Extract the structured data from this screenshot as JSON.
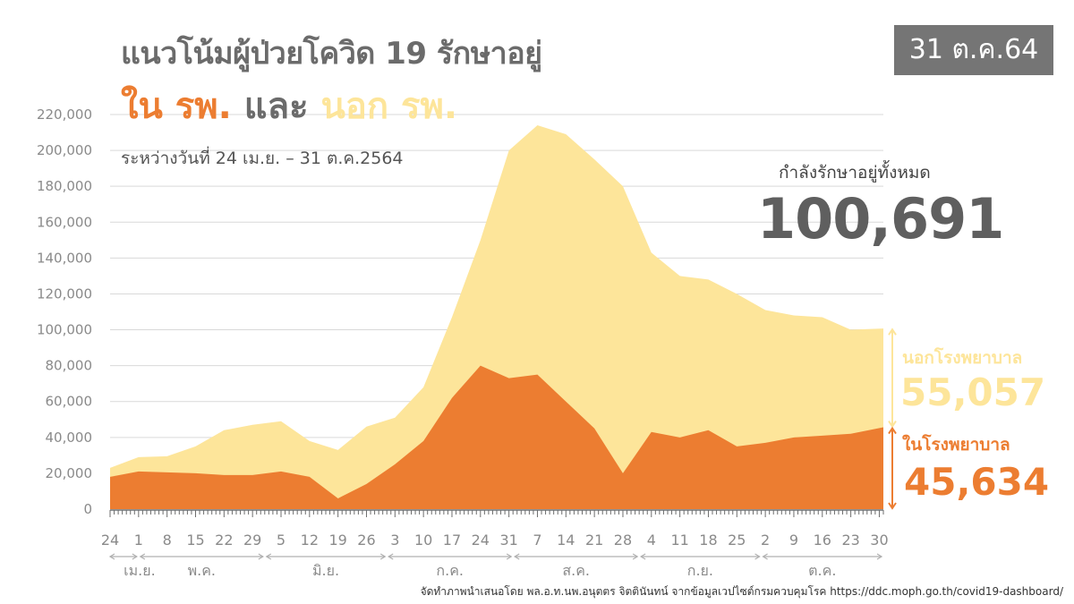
{
  "header": {
    "title": "แนวโน้มผู้ป่วยโควิด 19 รักษาอยู่",
    "subtitle_in": "ใน รพ.",
    "subtitle_and": "และ",
    "subtitle_out": "นอก รพ.",
    "date_range": "ระหว่างวันที่ 24 เม.ย. – 31 ต.ค.2564",
    "date_badge": "31 ต.ค.64"
  },
  "summary": {
    "total_label": "กำลังรักษาอยู่ทั้งหมด",
    "total_value": "100,691",
    "outside_label": "นอกโรงพยาบาล",
    "outside_value": "55,057",
    "inside_label": "ในโรงพยาบาล",
    "inside_value": "45,634"
  },
  "footer": {
    "credit": "จัดทำภาพนำเสนอโดย พล.อ.ท.นพ.อนุตตร จิตตินันทน์ จากข้อมูลเวปไซต์กรมควบคุมโรค https://ddc.moph.go.th/covid19-dashboard/"
  },
  "colors": {
    "inside": "#ec7d31",
    "outside": "#fde59a",
    "grid": "#d9d9d9",
    "axis_text": "#8a8a8a"
  },
  "chart_data": {
    "type": "area",
    "stacked": true,
    "x_start": "2021-04-24",
    "x_end": "2021-10-31",
    "x_tick_labels": [
      "24",
      "1",
      "8",
      "15",
      "22",
      "29",
      "5",
      "12",
      "19",
      "26",
      "3",
      "10",
      "17",
      "24",
      "31",
      "7",
      "14",
      "21",
      "28",
      "4",
      "11",
      "18",
      "25",
      "2",
      "9",
      "16",
      "23",
      "30"
    ],
    "months": [
      "เม.ย.",
      "พ.ค.",
      "มิ.ย.",
      "ก.ค.",
      "ส.ค.",
      "ก.ย.",
      "ต.ค."
    ],
    "y_ticks": [
      "0",
      "20,000",
      "40,000",
      "60,000",
      "80,000",
      "100,000",
      "120,000",
      "140,000",
      "160,000",
      "180,000",
      "200,000",
      "220,000"
    ],
    "ylim": [
      0,
      220000
    ],
    "grid": true,
    "series": [
      {
        "name": "ในโรงพยาบาล",
        "dates": [
          "2021-04-24",
          "2021-05-01",
          "2021-05-08",
          "2021-05-15",
          "2021-05-22",
          "2021-05-29",
          "2021-06-05",
          "2021-06-12",
          "2021-06-19",
          "2021-06-26",
          "2021-07-03",
          "2021-07-10",
          "2021-07-17",
          "2021-07-24",
          "2021-07-31",
          "2021-08-07",
          "2021-08-14",
          "2021-08-21",
          "2021-08-28",
          "2021-09-04",
          "2021-09-11",
          "2021-09-18",
          "2021-09-25",
          "2021-10-02",
          "2021-10-09",
          "2021-10-16",
          "2021-10-23",
          "2021-10-31"
        ],
        "values": [
          18000,
          21000,
          20500,
          20000,
          19000,
          19000,
          21000,
          18000,
          6000,
          14000,
          25000,
          38000,
          62000,
          80000,
          73000,
          75000,
          60000,
          45000,
          20000,
          43000,
          40000,
          44000,
          35000,
          37000,
          40000,
          41000,
          42000,
          45634
        ]
      },
      {
        "name": "นอกโรงพยาบาล",
        "dates": [
          "2021-04-24",
          "2021-05-01",
          "2021-05-08",
          "2021-05-15",
          "2021-05-22",
          "2021-05-29",
          "2021-06-05",
          "2021-06-12",
          "2021-06-19",
          "2021-06-26",
          "2021-07-03",
          "2021-07-10",
          "2021-07-17",
          "2021-07-24",
          "2021-07-31",
          "2021-08-07",
          "2021-08-14",
          "2021-08-21",
          "2021-08-28",
          "2021-09-04",
          "2021-09-11",
          "2021-09-18",
          "2021-09-25",
          "2021-10-02",
          "2021-10-09",
          "2021-10-16",
          "2021-10-23",
          "2021-10-31"
        ],
        "values": [
          5000,
          8000,
          9000,
          15000,
          25000,
          28000,
          28000,
          20000,
          27000,
          32000,
          26000,
          30000,
          45000,
          70000,
          127000,
          139000,
          149000,
          150000,
          160000,
          100000,
          90000,
          84000,
          85000,
          74000,
          68000,
          66000,
          58000,
          55057
        ]
      }
    ]
  }
}
